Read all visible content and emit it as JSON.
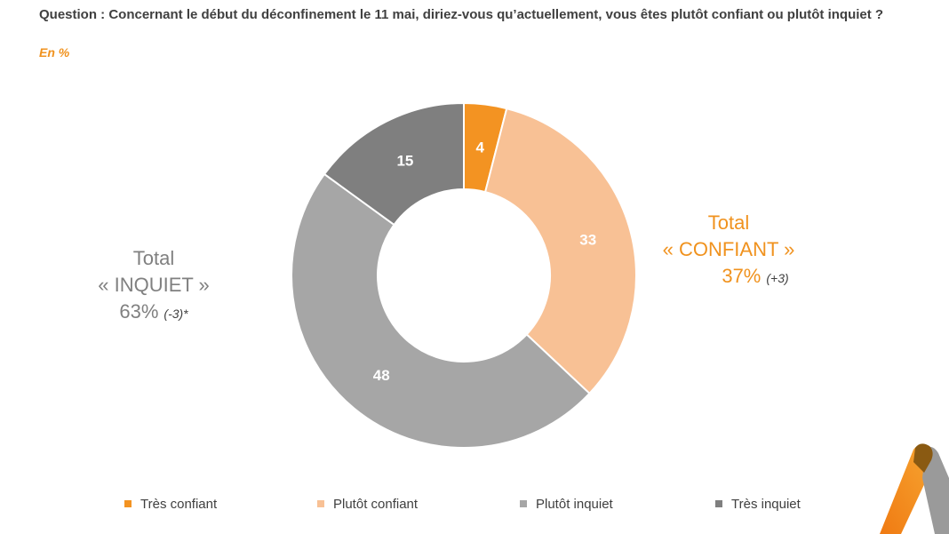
{
  "header": {
    "question": "Question : Concernant le début du déconfinement le 11 mai, diriez-vous qu’actuellement, vous êtes plutôt confiant ou plutôt inquiet ?",
    "unit": "En %"
  },
  "chart_data": {
    "type": "pie",
    "variant": "donut",
    "title": "Question : Concernant le début du déconfinement le 11 mai, diriez-vous qu’actuellement, vous êtes plutôt confiant ou plutôt inquiet ?",
    "unit": "En %",
    "categories": [
      "Très confiant",
      "Plutôt confiant",
      "Plutôt inquiet",
      "Très inquiet"
    ],
    "values": [
      4,
      33,
      48,
      15
    ],
    "colors": [
      "#f39322",
      "#f8c195",
      "#a6a6a6",
      "#7f7f7f"
    ],
    "data_labels": [
      "4",
      "33",
      "48",
      "15"
    ],
    "legend_position": "bottom",
    "annotations": [
      {
        "line1": "Total",
        "line2": "« INQUIET »",
        "value": "63%",
        "delta": "(-3)*"
      },
      {
        "line1": "Total",
        "line2": "« CONFIANT »",
        "value": "37%",
        "delta": "(+3)"
      }
    ]
  },
  "colors": {
    "accent": "#f0921e",
    "text": "#404040",
    "grey_text": "#808080"
  },
  "logo": {
    "icon": "brand-logo-icon"
  }
}
